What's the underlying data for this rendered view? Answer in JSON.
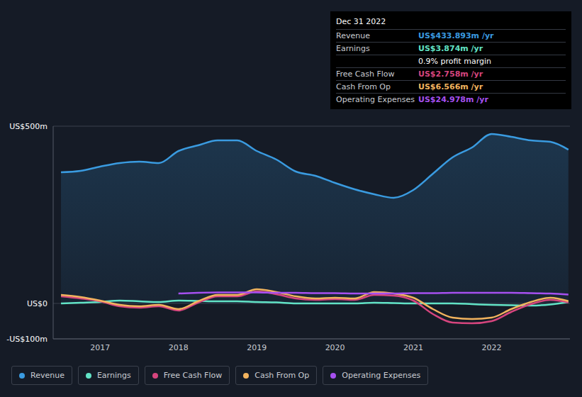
{
  "chart_data": {
    "type": "line",
    "x": [
      2016.5,
      2016.75,
      2017,
      2017.25,
      2017.5,
      2017.75,
      2018,
      2018.25,
      2018.5,
      2018.75,
      2019,
      2019.25,
      2019.5,
      2019.75,
      2020,
      2020.25,
      2020.5,
      2020.75,
      2021,
      2021.25,
      2021.5,
      2021.75,
      2022,
      2022.25,
      2022.5,
      2022.75,
      2022.98
    ],
    "xlim": [
      2016.4,
      2023
    ],
    "xticks": [
      2017,
      2018,
      2019,
      2020,
      2021,
      2022
    ],
    "ylim": [
      -100,
      500
    ],
    "yticks": [
      {
        "value": -100,
        "label": "-US$100m"
      },
      {
        "value": 0,
        "label": "US$0"
      },
      {
        "value": 500,
        "label": "US$500m"
      }
    ],
    "grid": true,
    "series": [
      {
        "name": "Revenue",
        "color": "#3a9be0",
        "type": "area",
        "values": [
          370,
          374,
          386,
          396,
          400,
          396,
          430,
          446,
          460,
          460,
          430,
          406,
          372,
          360,
          340,
          322,
          308,
          298,
          320,
          366,
          412,
          440,
          478,
          470,
          460,
          456,
          433.893
        ]
      },
      {
        "name": "Earnings",
        "color": "#62e3c6",
        "type": "line",
        "values": [
          0,
          2,
          4,
          8,
          6,
          4,
          8,
          7,
          6,
          6,
          4,
          3,
          0,
          0,
          0,
          0,
          2,
          1,
          0,
          0,
          0,
          -2,
          -4,
          -5,
          -6,
          -3,
          3.874
        ]
      },
      {
        "name": "Free Cash Flow",
        "color": "#d6457e",
        "type": "line",
        "values": [
          20,
          14,
          6,
          -8,
          -12,
          -8,
          -20,
          2,
          20,
          20,
          34,
          26,
          14,
          10,
          12,
          10,
          24,
          22,
          8,
          -30,
          -54,
          -56,
          -50,
          -24,
          -2,
          10,
          2.758
        ]
      },
      {
        "name": "Cash From Op",
        "color": "#f2b35e",
        "type": "line",
        "values": [
          24,
          18,
          8,
          -4,
          -8,
          -4,
          -16,
          6,
          24,
          24,
          40,
          32,
          20,
          14,
          16,
          14,
          32,
          28,
          16,
          -16,
          -40,
          -44,
          -40,
          -16,
          4,
          16,
          6.566
        ]
      },
      {
        "name": "Operating Expenses",
        "color": "#a650f0",
        "type": "line",
        "values": [
          null,
          null,
          null,
          null,
          null,
          null,
          28,
          30,
          31,
          31,
          31,
          30,
          30,
          29,
          29,
          28,
          28,
          28,
          29,
          29,
          30,
          30,
          30,
          30,
          29,
          28,
          24.978
        ]
      }
    ],
    "annotation": {
      "title": "Dec 31 2022",
      "rows": [
        {
          "label": "Revenue",
          "value": "US$433.893m /yr"
        },
        {
          "label": "Earnings",
          "value": "US$3.874m /yr"
        },
        {
          "value": "0.9% profit margin"
        },
        {
          "label": "Free Cash Flow",
          "value": "US$2.758m /yr"
        },
        {
          "label": "Cash From Op",
          "value": "US$6.566m /yr"
        },
        {
          "label": "Operating Expenses",
          "value": "US$24.978m /yr"
        }
      ]
    }
  }
}
